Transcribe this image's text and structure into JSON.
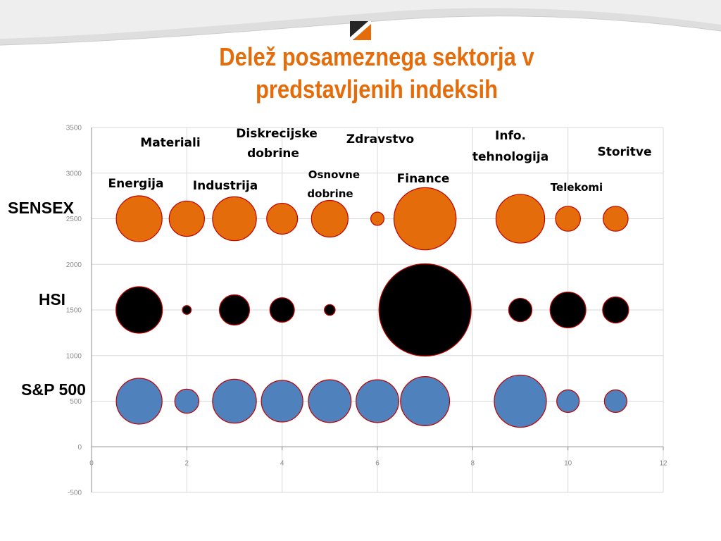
{
  "title": "Delež posameznega sektorja v predstavljenih indeksih",
  "colors": {
    "title": "#e46c0a",
    "sensex": "#e46c0a",
    "hsi": "#000000",
    "sp500": "#4f81bd",
    "bubble_outline": "#c00000"
  },
  "chart_data": {
    "type": "bubble",
    "xlim": [
      0,
      12
    ],
    "ylim": [
      -500,
      3500
    ],
    "x_ticks": [
      "0",
      "2",
      "4",
      "6",
      "8",
      "10",
      "12"
    ],
    "y_ticks": [
      "-500",
      "0",
      "500",
      "1000",
      "1500",
      "2000",
      "2500",
      "3000",
      "3500"
    ],
    "grid": true,
    "categories": [
      {
        "label": "Energija",
        "x": 1
      },
      {
        "label": "Materiali",
        "x": 2
      },
      {
        "label": "Industrija",
        "x": 3
      },
      {
        "label": "Diskrecijske dobrine",
        "x": 4
      },
      {
        "label": "Osnovne dobrine",
        "x": 5
      },
      {
        "label": "Zdravstvo",
        "x": 6
      },
      {
        "label": "Finance",
        "x": 7
      },
      {
        "label": "Info. tehnologija",
        "x": 9
      },
      {
        "label": "Telekomi",
        "x": 10
      },
      {
        "label": "Storitve",
        "x": 11
      }
    ],
    "series": [
      {
        "name": "SENSEX",
        "y": 2500,
        "color": "#e46c0a",
        "x": [
          1,
          2,
          3,
          4,
          5,
          6,
          7,
          9,
          10,
          11
        ],
        "size": [
          10.8,
          6.4,
          9.9,
          4.9,
          6.9,
          0.9,
          19.9,
          12.2,
          3.2,
          3.2
        ]
      },
      {
        "name": "HSI",
        "y": 1500,
        "color": "#000000",
        "x": [
          1,
          2,
          3,
          4,
          5,
          7,
          9,
          10,
          11
        ],
        "size": [
          11.1,
          0.4,
          4.7,
          3.1,
          0.6,
          43.8,
          2.8,
          6.6,
          3.5
        ]
      },
      {
        "name": "S&P 500",
        "y": 500,
        "color": "#4f81bd",
        "x": [
          1,
          2,
          3,
          4,
          5,
          6,
          7,
          9,
          10,
          11
        ],
        "size": [
          10.8,
          3.0,
          9.9,
          8.9,
          9.4,
          9.4,
          12.4,
          14.0,
          2.6,
          2.6
        ]
      }
    ]
  }
}
